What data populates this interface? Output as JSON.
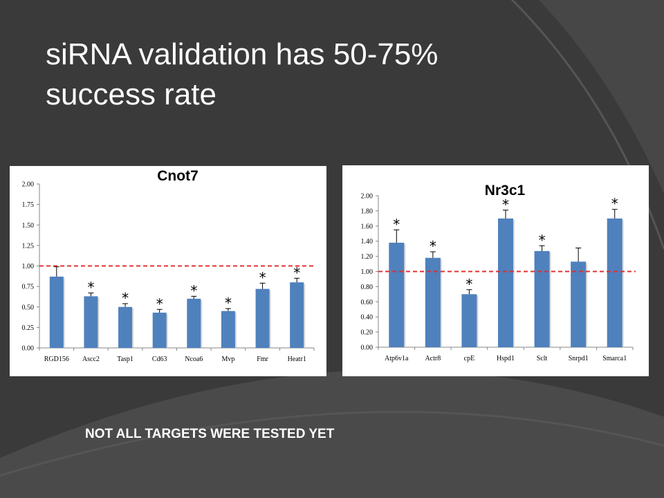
{
  "slide": {
    "title_line1": "siRNA validation has 50-75%",
    "title_line2": "success rate",
    "footnote": "NOT ALL TARGETS WERE TESTED YET"
  },
  "colors": {
    "background": "#3a3a3a",
    "bar": "#4f81bd",
    "reference_line": "#e03030",
    "text": "#ffffff"
  },
  "chart_data": [
    {
      "type": "bar",
      "title": "Cnot7",
      "categories": [
        "RGD156",
        "Ascc2",
        "Tasp1",
        "Cd63",
        "Ncoa6",
        "Mvp",
        "Fmr",
        "Heatr1"
      ],
      "values": [
        0.87,
        0.63,
        0.5,
        0.43,
        0.6,
        0.45,
        0.72,
        0.8
      ],
      "errors": [
        0.12,
        0.04,
        0.04,
        0.04,
        0.03,
        0.03,
        0.07,
        0.05
      ],
      "significant": [
        false,
        true,
        true,
        true,
        true,
        true,
        true,
        true
      ],
      "significance_marker": "*",
      "reference_line": 1.0,
      "ylim": [
        0,
        2
      ],
      "yticks": [
        "0.00",
        "0.25",
        "0.50",
        "0.75",
        "1.00",
        "1.25",
        "1.50",
        "1.75",
        "2.00"
      ],
      "xlabel": "",
      "ylabel": ""
    },
    {
      "type": "bar",
      "title": "Nr3c1",
      "categories": [
        "Atp6v1a",
        "Actr8",
        "cpE",
        "Hspd1",
        "Sclt",
        "Snrpd1",
        "Smarca1"
      ],
      "values": [
        1.38,
        1.18,
        0.7,
        1.7,
        1.27,
        1.13,
        1.7
      ],
      "errors": [
        0.17,
        0.08,
        0.06,
        0.11,
        0.07,
        0.18,
        0.12
      ],
      "significant": [
        true,
        true,
        true,
        true,
        true,
        false,
        true
      ],
      "significance_marker": "*",
      "reference_line": 1.0,
      "ylim": [
        0,
        2
      ],
      "yticks": [
        "0.00",
        "0.20",
        "0.40",
        "0.60",
        "0.80",
        "1.00",
        "1.20",
        "1.40",
        "1.60",
        "1.80",
        "2.00"
      ],
      "xlabel": "",
      "ylabel": ""
    }
  ]
}
